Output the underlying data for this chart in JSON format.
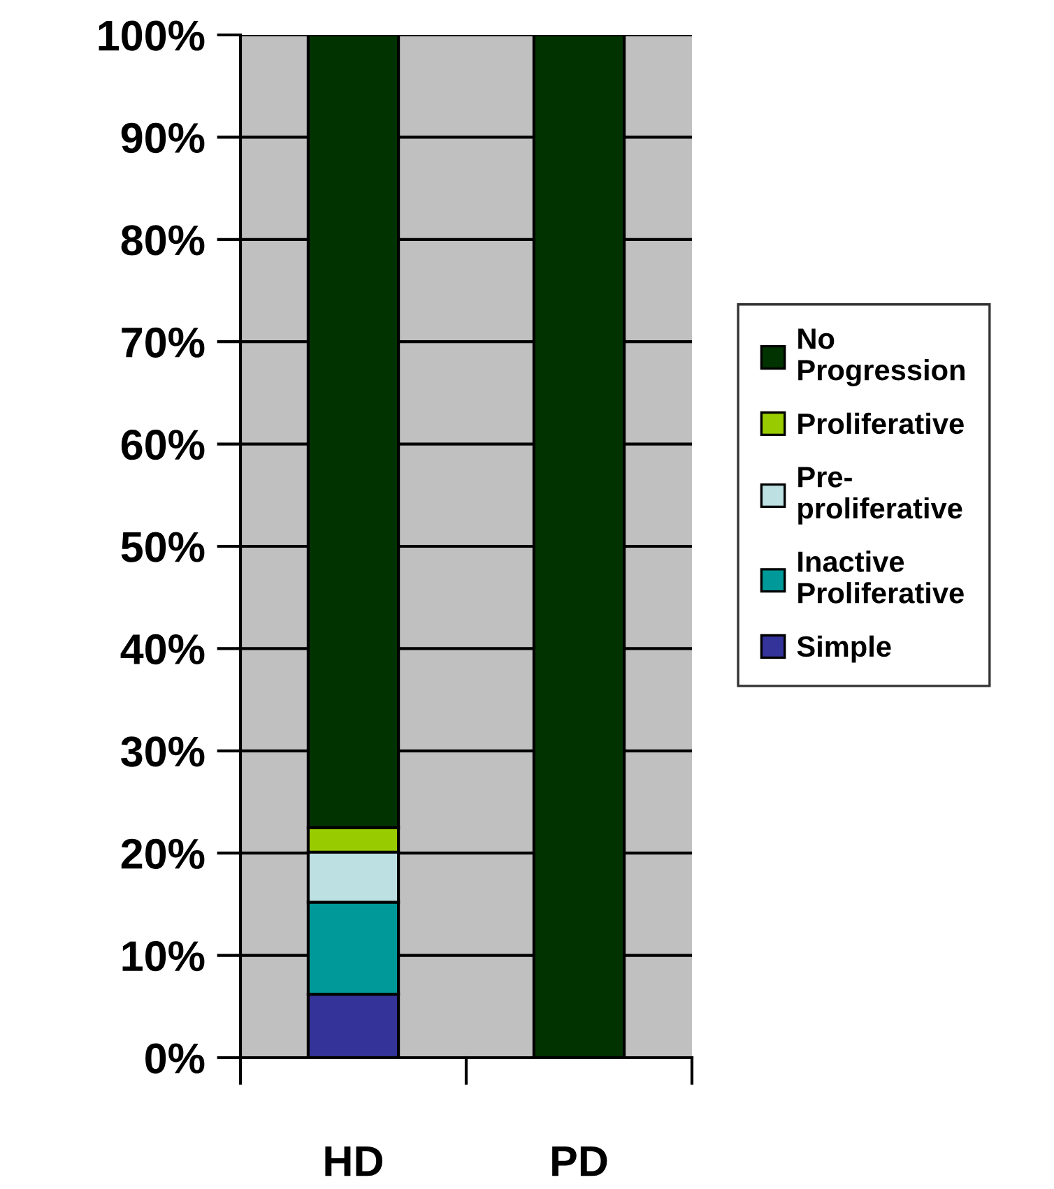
{
  "chart_data": {
    "type": "bar",
    "stacked": true,
    "categories": [
      "HD",
      "PD"
    ],
    "series": [
      {
        "name": "Simple",
        "color": "#333399",
        "values": [
          6.2,
          0
        ]
      },
      {
        "name": "Inactive\nProliferative",
        "color": "#009999",
        "values": [
          9.0,
          0
        ]
      },
      {
        "name": "Pre-\nproliferative",
        "color": "#bde0e3",
        "values": [
          4.9,
          0
        ]
      },
      {
        "name": "Proliferative",
        "color": "#99cc00",
        "values": [
          2.4,
          0
        ]
      },
      {
        "name": "No\nProgression",
        "color": "#003300",
        "values": [
          77.5,
          100
        ]
      }
    ],
    "ylim": [
      0,
      100
    ],
    "yticks": [
      {
        "value": 0,
        "label": "0%"
      },
      {
        "value": 10,
        "label": "10%"
      },
      {
        "value": 20,
        "label": "20%"
      },
      {
        "value": 30,
        "label": "30%"
      },
      {
        "value": 40,
        "label": "40%"
      },
      {
        "value": 50,
        "label": "50%"
      },
      {
        "value": 60,
        "label": "60%"
      },
      {
        "value": 70,
        "label": "70%"
      },
      {
        "value": 80,
        "label": "80%"
      },
      {
        "value": 90,
        "label": "90%"
      },
      {
        "value": 100,
        "label": "100%"
      }
    ],
    "grid": "y",
    "legend": "right"
  }
}
